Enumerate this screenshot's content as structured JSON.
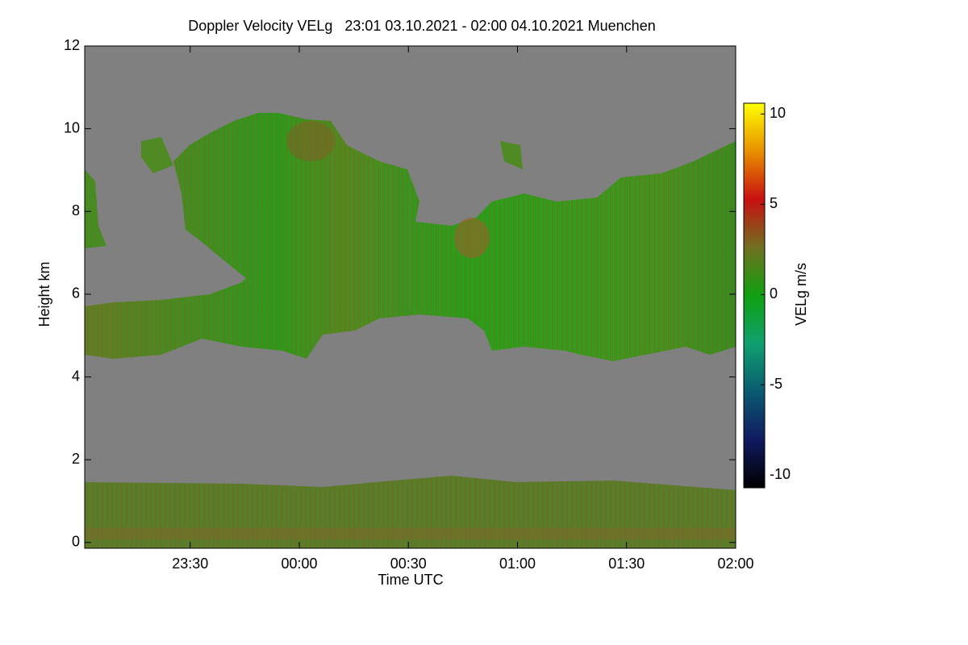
{
  "chart_data": {
    "type": "time-height",
    "title": "Doppler Velocity VELg   23:01 03.10.2021 - 02:00 04.10.2021 Muenchen",
    "x_label": "Time UTC",
    "y_label": "Height km",
    "xlim": [
      1,
      180
    ],
    "xticks": [
      {
        "value": 30,
        "label": "23:30"
      },
      {
        "value": 60,
        "label": "00:00"
      },
      {
        "value": 90,
        "label": "00:30"
      },
      {
        "value": 120,
        "label": "01:00"
      },
      {
        "value": 150,
        "label": "01:30"
      },
      {
        "value": 180,
        "label": "02:00"
      }
    ],
    "ylim": [
      -0.14,
      12
    ],
    "yticks": [
      0,
      2,
      4,
      6,
      8,
      10,
      12
    ],
    "colorbar": {
      "label": "VELg m/s",
      "clim": [
        -10.7,
        10.6
      ],
      "ticks": [
        10,
        5,
        0,
        -5,
        -10
      ],
      "colors": [
        "#000000",
        "#101a60",
        "#0a5a70",
        "#10a070",
        "#10a010",
        "#707020",
        "#c81010",
        "#e89000",
        "#ffff00"
      ]
    },
    "background": "#808080"
  }
}
